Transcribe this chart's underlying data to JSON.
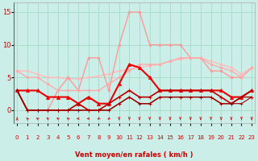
{
  "xlabel": "Vent moyen/en rafales ( km/h )",
  "background_color": "#cceee8",
  "grid_color": "#aaddcc",
  "x_ticks": [
    0,
    1,
    2,
    3,
    4,
    5,
    6,
    7,
    8,
    9,
    10,
    11,
    12,
    13,
    14,
    15,
    16,
    17,
    18,
    19,
    20,
    21,
    22,
    23
  ],
  "y_ticks": [
    0,
    5,
    10,
    15
  ],
  "xlim": [
    -0.3,
    23.3
  ],
  "ylim": [
    -2.0,
    16.5
  ],
  "series": [
    {
      "x": [
        0,
        1,
        2,
        3,
        4,
        5,
        6,
        7,
        8,
        9,
        10,
        11,
        12,
        13,
        14,
        15,
        16,
        17,
        18,
        19,
        20,
        21,
        22,
        23
      ],
      "y": [
        6,
        6,
        5.5,
        5,
        5,
        4.8,
        4.8,
        5,
        5.2,
        5.5,
        6,
        6.2,
        6.5,
        6.8,
        7,
        7.5,
        7.8,
        8,
        8,
        7.5,
        7,
        6.5,
        5.5,
        6.5
      ],
      "color": "#ffbbbb",
      "lw": 1.0,
      "marker": "o",
      "ms": 2.0
    },
    {
      "x": [
        0,
        1,
        2,
        3,
        4,
        5,
        6,
        7,
        8,
        9,
        10,
        11,
        12,
        13,
        14,
        15,
        16,
        17,
        18,
        19,
        20,
        21,
        22,
        23
      ],
      "y": [
        3,
        0,
        0,
        0,
        3,
        5,
        3,
        8,
        8,
        3,
        10,
        15,
        15,
        10,
        10,
        10,
        10,
        8,
        8,
        6,
        6,
        5,
        5,
        6.5
      ],
      "color": "#ff9999",
      "lw": 1.0,
      "marker": "o",
      "ms": 2.0
    },
    {
      "x": [
        0,
        1,
        2,
        3,
        4,
        5,
        6,
        7,
        8,
        9,
        10,
        11,
        12,
        13,
        14,
        15,
        16,
        17,
        18,
        19,
        20,
        21,
        22,
        23
      ],
      "y": [
        6,
        5,
        5,
        4,
        3,
        3,
        3,
        3,
        3,
        4,
        5,
        6,
        7,
        7,
        7,
        7.5,
        8,
        8,
        8,
        7,
        6.5,
        6,
        5,
        6.5
      ],
      "color": "#ffaaaa",
      "lw": 1.0,
      "marker": "o",
      "ms": 2.0
    },
    {
      "x": [
        0,
        1,
        2,
        3,
        4,
        5,
        6,
        7,
        8,
        9,
        10,
        11,
        12,
        13,
        14,
        15,
        16,
        17,
        18,
        19,
        20,
        21,
        22,
        23
      ],
      "y": [
        3,
        3,
        3,
        2,
        2,
        2,
        1,
        2,
        1,
        1,
        4,
        7,
        6.5,
        5,
        3,
        3,
        3,
        3,
        3,
        3,
        3,
        2,
        2,
        3
      ],
      "color": "#ee0000",
      "lw": 1.5,
      "marker": "^",
      "ms": 3.0
    },
    {
      "x": [
        0,
        1,
        2,
        3,
        4,
        5,
        6,
        7,
        8,
        9,
        10,
        11,
        12,
        13,
        14,
        15,
        16,
        17,
        18,
        19,
        20,
        21,
        22,
        23
      ],
      "y": [
        3,
        0,
        0,
        0,
        0,
        0,
        1,
        0,
        0,
        1,
        2,
        3,
        2,
        2,
        3,
        3,
        3,
        3,
        3,
        3,
        2,
        1,
        2,
        3
      ],
      "color": "#cc1111",
      "lw": 1.0,
      "marker": "+",
      "ms": 3.5
    },
    {
      "x": [
        0,
        1,
        2,
        3,
        4,
        5,
        6,
        7,
        8,
        9,
        10,
        11,
        12,
        13,
        14,
        15,
        16,
        17,
        18,
        19,
        20,
        21,
        22,
        23
      ],
      "y": [
        3,
        0,
        0,
        0,
        0,
        0,
        1,
        0,
        0,
        1,
        2,
        3,
        2,
        2,
        3,
        3,
        3,
        3,
        3,
        3,
        2,
        1,
        2,
        3
      ],
      "color": "#bb0000",
      "lw": 1.0,
      "marker": "+",
      "ms": 3.5
    },
    {
      "x": [
        0,
        1,
        2,
        3,
        4,
        5,
        6,
        7,
        8,
        9,
        10,
        11,
        12,
        13,
        14,
        15,
        16,
        17,
        18,
        19,
        20,
        21,
        22,
        23
      ],
      "y": [
        3,
        0,
        0,
        0,
        0,
        0,
        0,
        0,
        0,
        0,
        1,
        2,
        1,
        1,
        2,
        2,
        2,
        2,
        2,
        2,
        1,
        1,
        2,
        2
      ],
      "color": "#aa0000",
      "lw": 1.0,
      "marker": "+",
      "ms": 3.0
    },
    {
      "x": [
        0,
        1,
        2,
        3,
        4,
        5,
        6,
        7,
        8,
        9,
        10,
        11,
        12,
        13,
        14,
        15,
        16,
        17,
        18,
        19,
        20,
        21,
        22,
        23
      ],
      "y": [
        3,
        0,
        0,
        0,
        0,
        0,
        0,
        0,
        0,
        0,
        1,
        2,
        1,
        1,
        2,
        2,
        2,
        2,
        2,
        2,
        1,
        1,
        1,
        2
      ],
      "color": "#990000",
      "lw": 0.8,
      "marker": "+",
      "ms": 2.5
    }
  ],
  "wind_arrow_angles": [
    90,
    120,
    135,
    135,
    135,
    135,
    180,
    180,
    225,
    225,
    270,
    270,
    270,
    270,
    270,
    270,
    270,
    270,
    270,
    270,
    270,
    270,
    270,
    270
  ],
  "wind_arrows_color": "#cc2222",
  "xlabel_color": "#cc0000"
}
